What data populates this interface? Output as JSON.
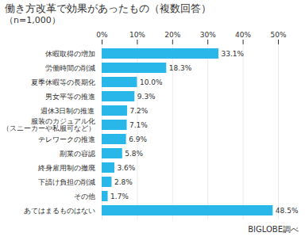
{
  "chart_data": {
    "type": "bar",
    "orientation": "horizontal",
    "title": "働き方改革で効果があったもの（複数回答）",
    "subtitle": "（n=1,000）",
    "annotations": [
      "BIGLOBE調べ"
    ],
    "categories": [
      "休暇取得の増加",
      "労働時間の削減",
      "夏季休暇等の長期化",
      "男女平等の推進",
      "週休3日制の推進",
      "服装のカジュアル化\n（スニーカーや私服可など）",
      "テレワークの推進",
      "副業の容認",
      "終身雇用制の撤廃",
      "下請け負担の削減",
      "その他",
      "あてはまるものはない"
    ],
    "values": [
      33.1,
      18.3,
      10.0,
      9.3,
      7.2,
      7.1,
      6.9,
      5.8,
      3.6,
      2.8,
      1.7,
      48.5
    ],
    "value_labels": [
      "33.1%",
      "18.3%",
      "10.0%",
      "9.3%",
      "7.2%",
      "7.1%",
      "6.9%",
      "5.8%",
      "3.6%",
      "2.8%",
      "1.7%",
      "48.5%"
    ],
    "data_labels": true,
    "color": "#29b6e8",
    "xlim": [
      0,
      50
    ],
    "xticks": [
      {
        "value": 0,
        "label": "0%"
      },
      {
        "value": 10,
        "label": "10%"
      },
      {
        "value": 20,
        "label": "20%"
      },
      {
        "value": 30,
        "label": "30%"
      },
      {
        "value": 40,
        "label": "40%"
      },
      {
        "value": 50,
        "label": "50%"
      }
    ],
    "grid": true
  }
}
